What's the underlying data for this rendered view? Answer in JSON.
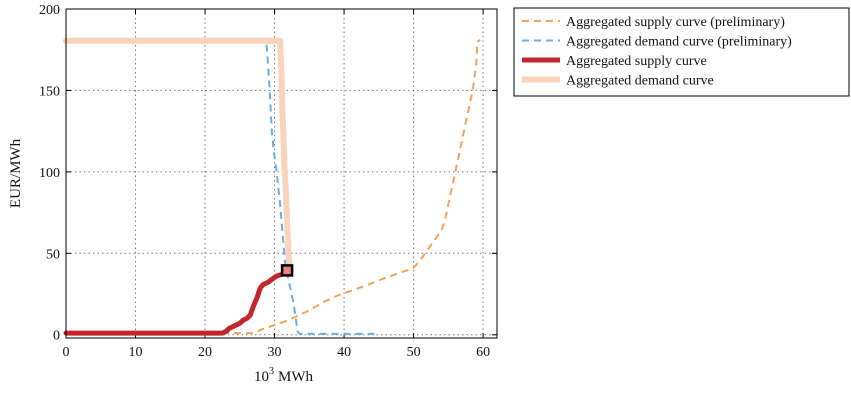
{
  "chart_data": {
    "type": "line",
    "xlabel": "10^3 MWh",
    "xlabel_base": "10",
    "xlabel_exp": "3",
    "xlabel_unit": "MWh",
    "ylabel": "EUR/MWh",
    "xlim": [
      0,
      62
    ],
    "ylim": [
      -2,
      200
    ],
    "x_ticks": [
      "0",
      "10",
      "20",
      "30",
      "40",
      "50",
      "60"
    ],
    "y_ticks": [
      "0",
      "50",
      "100",
      "150",
      "200"
    ],
    "grid": true,
    "legend_position": "outside-right",
    "series": [
      {
        "name": "Aggregated supply curve (preliminary)",
        "style": "dashed",
        "color": "#f5a25a",
        "points": [
          [
            0,
            1
          ],
          [
            27,
            1
          ],
          [
            28,
            3
          ],
          [
            30,
            6
          ],
          [
            32,
            9
          ],
          [
            34,
            13
          ],
          [
            35,
            15
          ],
          [
            37,
            20
          ],
          [
            39,
            24
          ],
          [
            41,
            27
          ],
          [
            43,
            30
          ],
          [
            46,
            35
          ],
          [
            48,
            38
          ],
          [
            50,
            41
          ],
          [
            51,
            46
          ],
          [
            52,
            52
          ],
          [
            53,
            58
          ],
          [
            54,
            64
          ],
          [
            54.5,
            70
          ],
          [
            55,
            80
          ],
          [
            55.5,
            90
          ],
          [
            56,
            100
          ],
          [
            56.5,
            110
          ],
          [
            57,
            120
          ],
          [
            57.5,
            130
          ],
          [
            58,
            140
          ],
          [
            58.5,
            150
          ],
          [
            59,
            165
          ],
          [
            59.2,
            180
          ],
          [
            59.6,
            181
          ]
        ]
      },
      {
        "name": "Aggregated demand curve (preliminary)",
        "style": "dashed",
        "color": "#6aaee0",
        "points": [
          [
            0,
            180.5
          ],
          [
            28.8,
            180.5
          ],
          [
            29,
            170
          ],
          [
            29.3,
            150
          ],
          [
            29.6,
            125
          ],
          [
            29.9,
            112
          ],
          [
            30.3,
            100
          ],
          [
            30.8,
            80
          ],
          [
            31.2,
            60
          ],
          [
            31.5,
            45
          ],
          [
            31.8,
            38
          ],
          [
            32.1,
            32
          ],
          [
            32.4,
            26
          ],
          [
            32.7,
            20
          ],
          [
            33,
            12
          ],
          [
            33.3,
            2
          ],
          [
            33.6,
            0.5
          ],
          [
            45,
            0.5
          ]
        ]
      },
      {
        "name": "Aggregated supply curve",
        "style": "solid",
        "color": "#c3272d",
        "points": [
          [
            0,
            1
          ],
          [
            22.5,
            1
          ],
          [
            23,
            2
          ],
          [
            23.5,
            4
          ],
          [
            24,
            5
          ],
          [
            24.5,
            6
          ],
          [
            25,
            7
          ],
          [
            25.5,
            9
          ],
          [
            26,
            10
          ],
          [
            26.5,
            12
          ],
          [
            27,
            18
          ],
          [
            27.5,
            23
          ],
          [
            27.8,
            27
          ],
          [
            28,
            29
          ],
          [
            28.4,
            31
          ],
          [
            29,
            32
          ],
          [
            29.6,
            34
          ],
          [
            30.3,
            36
          ],
          [
            31,
            37
          ],
          [
            31.7,
            38
          ],
          [
            32.1,
            39
          ]
        ]
      },
      {
        "name": "Aggregated demand curve",
        "style": "solid",
        "color": "#f9d3bb",
        "points": [
          [
            0,
            180.5
          ],
          [
            30.8,
            180.5
          ],
          [
            30.9,
            170
          ],
          [
            31,
            160
          ],
          [
            31.1,
            140
          ],
          [
            31.3,
            120
          ],
          [
            31.4,
            105
          ],
          [
            31.6,
            90
          ],
          [
            31.7,
            80
          ],
          [
            31.8,
            70
          ],
          [
            31.9,
            60
          ],
          [
            32,
            50
          ],
          [
            32.1,
            45
          ],
          [
            32.3,
            39
          ]
        ]
      }
    ],
    "marker": {
      "x": 31.8,
      "y": 39.5,
      "shape": "square"
    }
  },
  "colors": {
    "frame": "#000000",
    "grid": "#7a7a7a",
    "marker_fill": "#f08080",
    "marker_stroke": "#000000"
  }
}
